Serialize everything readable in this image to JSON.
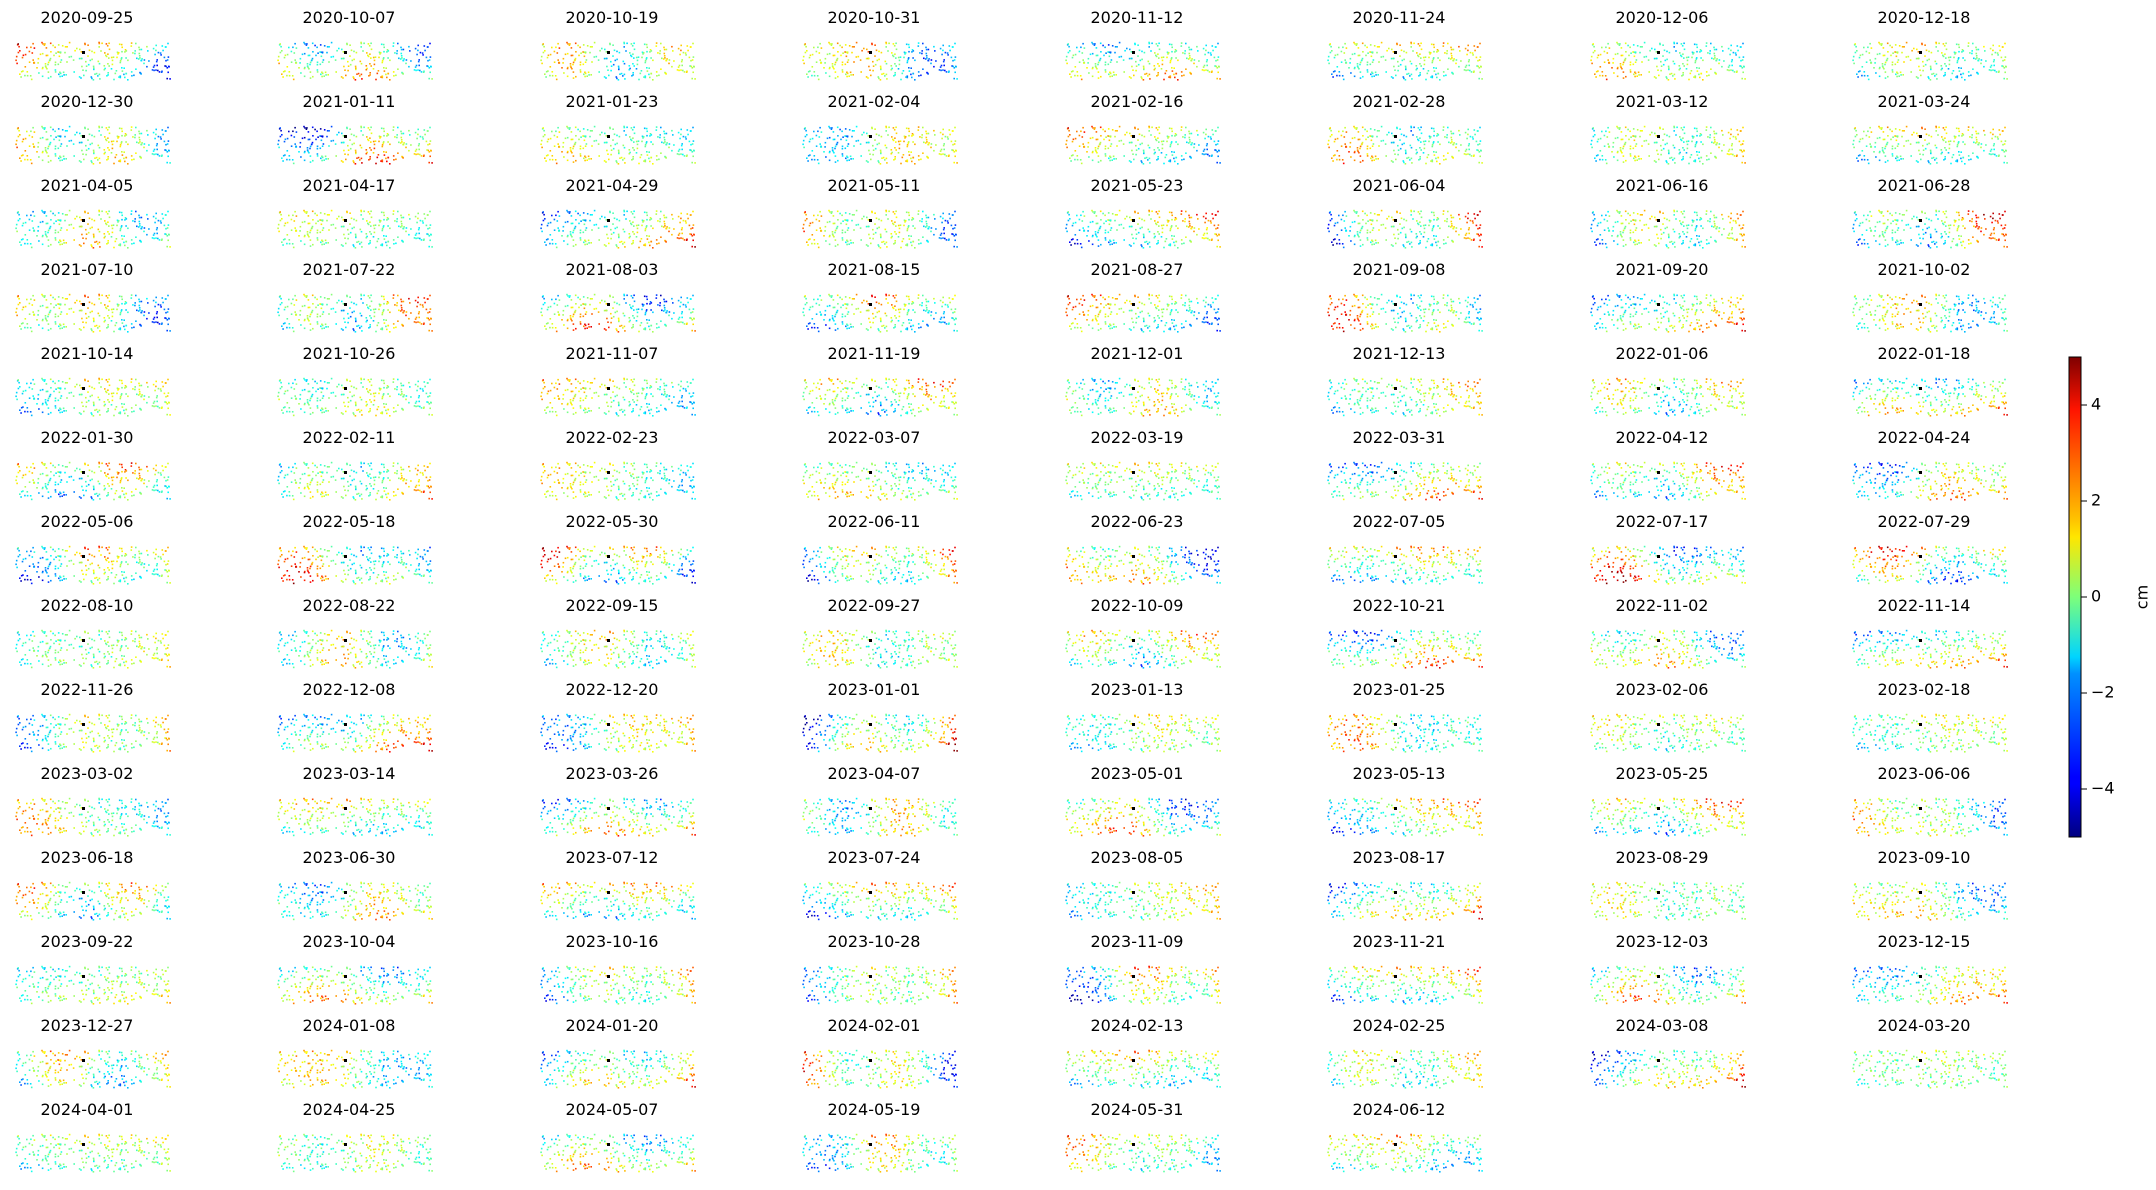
{
  "chart_data": {
    "type": "scatter",
    "description_kind": "small-multiples",
    "panels": [
      "2020-09-25",
      "2020-10-07",
      "2020-10-19",
      "2020-10-31",
      "2020-11-12",
      "2020-11-24",
      "2020-12-06",
      "2020-12-18",
      "2020-12-30",
      "2021-01-11",
      "2021-01-23",
      "2021-02-04",
      "2021-02-16",
      "2021-02-28",
      "2021-03-12",
      "2021-03-24",
      "2021-04-05",
      "2021-04-17",
      "2021-04-29",
      "2021-05-11",
      "2021-05-23",
      "2021-06-04",
      "2021-06-16",
      "2021-06-28",
      "2021-07-10",
      "2021-07-22",
      "2021-08-03",
      "2021-08-15",
      "2021-08-27",
      "2021-09-08",
      "2021-09-20",
      "2021-10-02",
      "2021-10-14",
      "2021-10-26",
      "2021-11-07",
      "2021-11-19",
      "2021-12-01",
      "2021-12-13",
      "2022-01-06",
      "2022-01-18",
      "2022-01-30",
      "2022-02-11",
      "2022-02-23",
      "2022-03-07",
      "2022-03-19",
      "2022-03-31",
      "2022-04-12",
      "2022-04-24",
      "2022-05-06",
      "2022-05-18",
      "2022-05-30",
      "2022-06-11",
      "2022-06-23",
      "2022-07-05",
      "2022-07-17",
      "2022-07-29",
      "2022-08-10",
      "2022-08-22",
      "2022-09-15",
      "2022-09-27",
      "2022-10-09",
      "2022-10-21",
      "2022-11-02",
      "2022-11-14",
      "2022-11-26",
      "2022-12-08",
      "2022-12-20",
      "2023-01-01",
      "2023-01-13",
      "2023-01-25",
      "2023-02-06",
      "2023-02-18",
      "2023-03-02",
      "2023-03-14",
      "2023-03-26",
      "2023-04-07",
      "2023-05-01",
      "2023-05-13",
      "2023-05-25",
      "2023-06-06",
      "2023-06-18",
      "2023-06-30",
      "2023-07-12",
      "2023-07-24",
      "2023-08-05",
      "2023-08-17",
      "2023-08-29",
      "2023-09-10",
      "2023-09-22",
      "2023-10-04",
      "2023-10-16",
      "2023-10-28",
      "2023-11-09",
      "2023-11-21",
      "2023-12-03",
      "2023-12-15",
      "2023-12-27",
      "2024-01-08",
      "2024-01-20",
      "2024-02-01",
      "2024-02-13",
      "2024-02-25",
      "2024-03-08",
      "2024-03-20",
      "2024-04-01",
      "2024-04-25",
      "2024-05-07",
      "2024-05-19",
      "2024-05-31",
      "2024-06-12"
    ],
    "colorbar": {
      "label": "cm",
      "vmin": -5,
      "vmax": 5,
      "ticks": [
        4,
        2,
        0,
        -2,
        -4
      ],
      "colormap": "jet"
    },
    "axes_visible": false,
    "reference_point": "black dot near panel centre"
  }
}
